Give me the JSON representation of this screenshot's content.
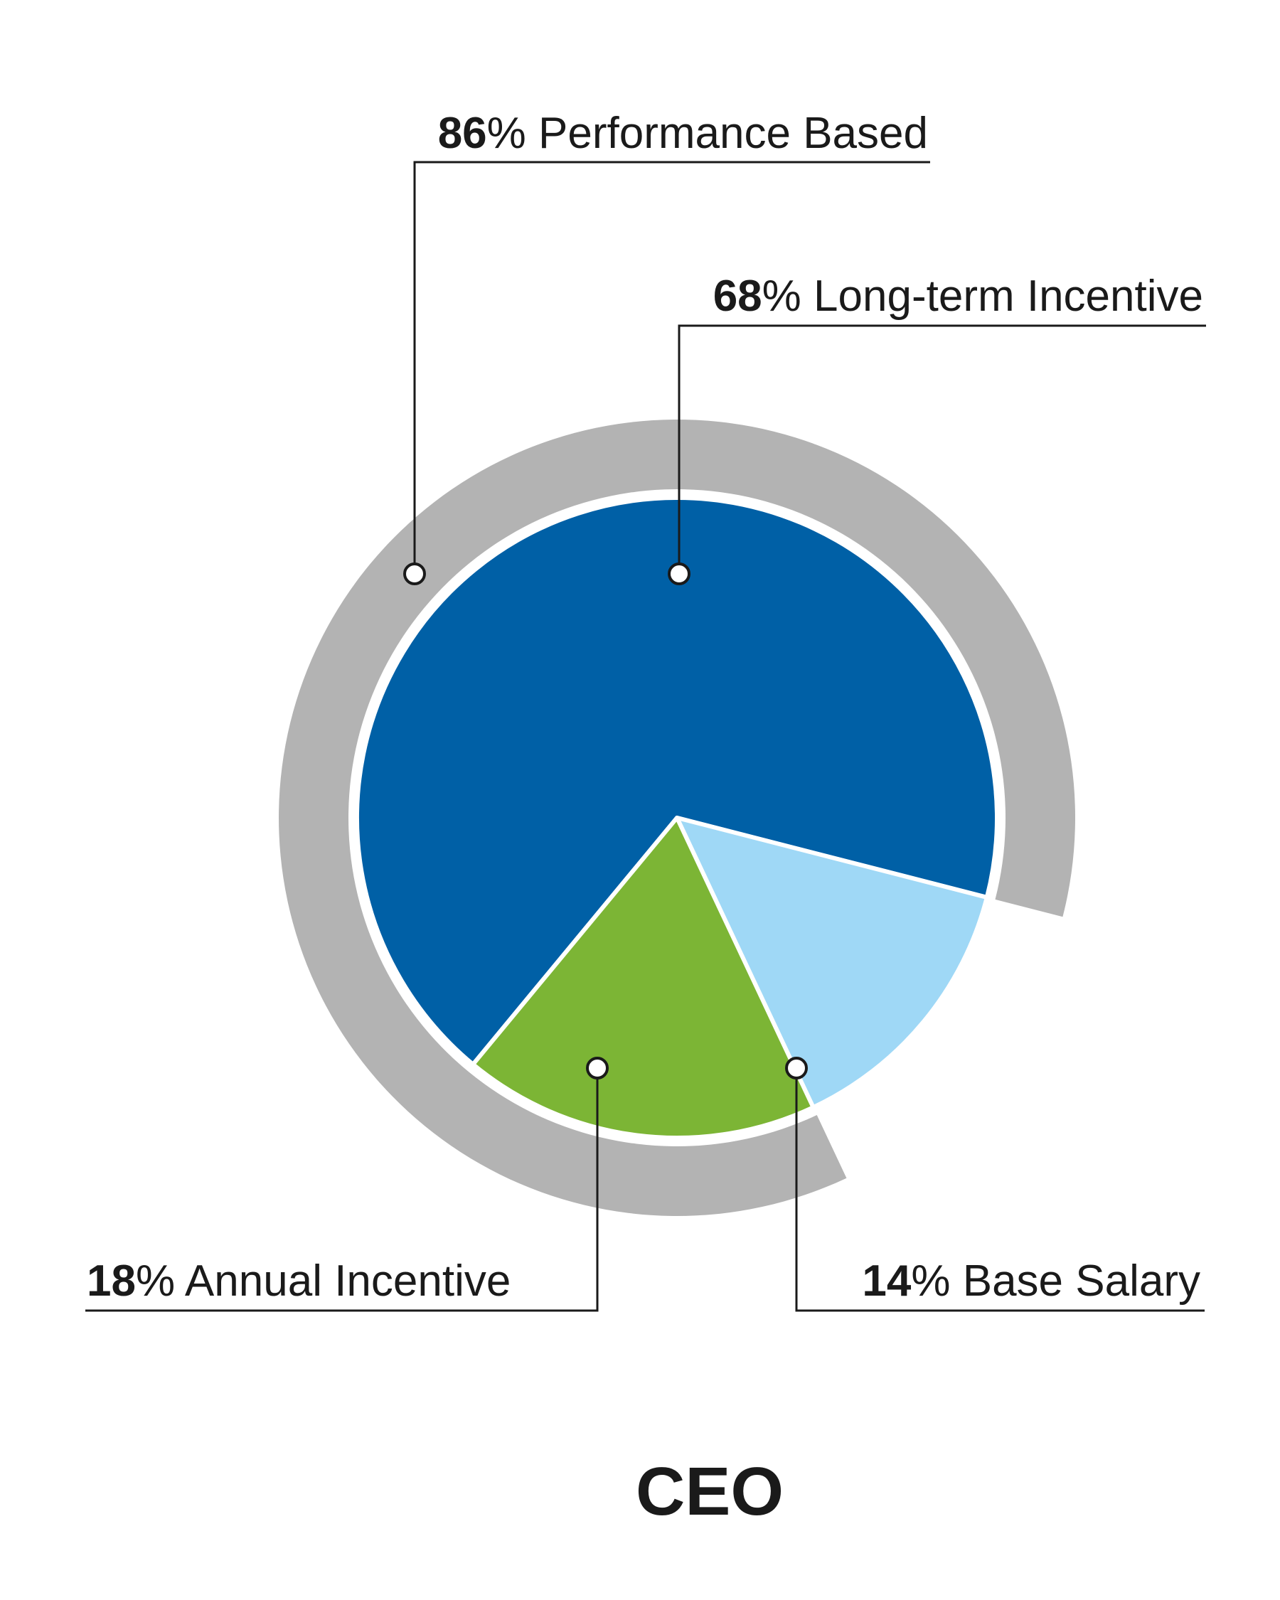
{
  "chart_data": {
    "type": "pie",
    "title": "CEO",
    "slices": [
      {
        "label": "Long-term Incentive",
        "value": 68,
        "color": "#0060a6"
      },
      {
        "label": "Base Salary",
        "value": 14,
        "color": "#9fd8f6"
      },
      {
        "label": "Annual Incentive",
        "value": 18,
        "color": "#7cb535"
      }
    ],
    "outer_ring": {
      "label": "Performance Based",
      "value": 86,
      "color": "#b3b3b3"
    },
    "annotations": [
      {
        "value": "86",
        "unit": "%",
        "text": "Performance Based"
      },
      {
        "value": "68",
        "unit": "%",
        "text": "Long-term Incentive"
      },
      {
        "value": "18",
        "unit": "%",
        "text": "Annual Incentive"
      },
      {
        "value": "14",
        "unit": "%",
        "text": "Base Salary"
      }
    ]
  }
}
